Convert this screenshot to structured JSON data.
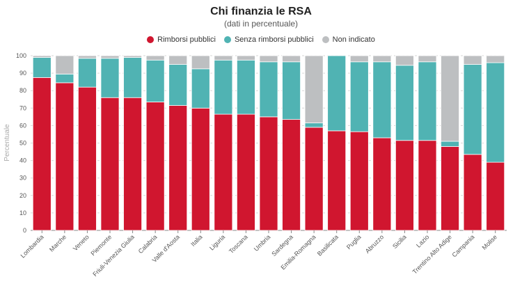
{
  "chart_data": {
    "type": "bar",
    "stacked": true,
    "title": "Chi finanzia le RSA",
    "subtitle": "(dati in percentuale)",
    "ylabel": "Percentuale",
    "ylim": [
      0,
      100
    ],
    "yticks": [
      0,
      10,
      20,
      30,
      40,
      50,
      60,
      70,
      80,
      90,
      100
    ],
    "grid": "dashed horizontal",
    "legend_position": "top-center",
    "categories": [
      "Lombardia",
      "Marche",
      "Veneto",
      "Piemonte",
      "Friuli-Venezia Giulia",
      "Calabria",
      "Valle d'Aosta",
      "Italia",
      "Liguria",
      "Toscana",
      "Umbria",
      "Sardegna",
      "Emilia-Romagna",
      "Basilicata",
      "Puglia",
      "Abruzzo",
      "Sicilia",
      "Lazio",
      "Trentino Alto Adige",
      "Campania",
      "Molise"
    ],
    "series": [
      {
        "name": "Rimborsi pubblici",
        "color": "#d0162f",
        "values": [
          87.5,
          84.5,
          82,
          76,
          76,
          73.5,
          71.5,
          70,
          66.5,
          66.5,
          65,
          63.5,
          59,
          57,
          56.5,
          53,
          51.5,
          51.5,
          48,
          43.5,
          39
        ]
      },
      {
        "name": "Senza rimborsi pubblici",
        "color": "#50b3b3",
        "values": [
          11.5,
          5,
          16.5,
          22.5,
          23,
          24,
          23.5,
          22.5,
          31,
          31,
          31.5,
          33,
          2.5,
          43,
          40,
          43.5,
          43,
          45,
          3,
          51.5,
          57
        ]
      },
      {
        "name": "Non indicato",
        "color": "#bdbfc1",
        "values": [
          1,
          10.5,
          1.5,
          1.5,
          1,
          2.5,
          5,
          7.5,
          2.5,
          2.5,
          3.5,
          3.5,
          38.5,
          0,
          3.5,
          3.5,
          5.5,
          3.5,
          49,
          5,
          4
        ]
      }
    ]
  }
}
